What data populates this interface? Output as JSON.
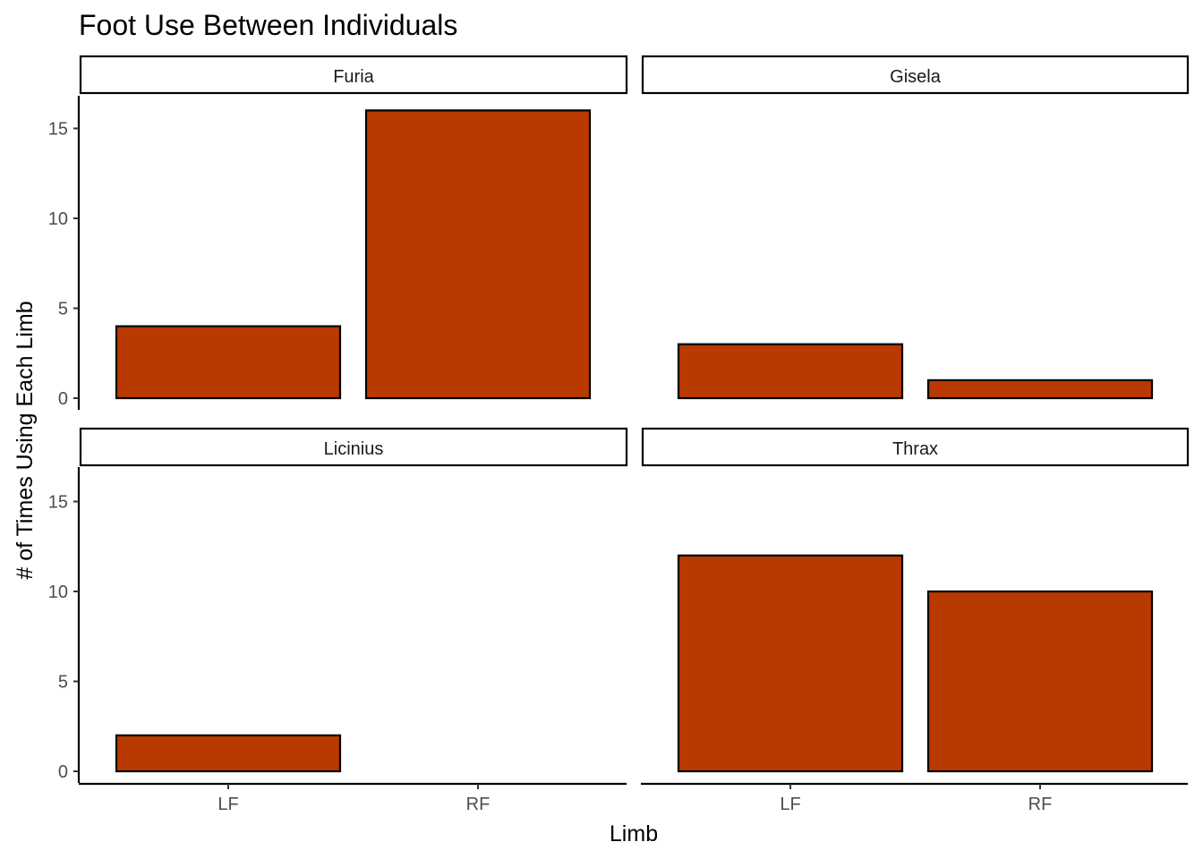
{
  "chart_data": {
    "type": "bar",
    "title": "Foot Use Between Individuals",
    "xlabel": "Limb",
    "ylabel": "# of Times Using Each Limb",
    "categories": [
      "LF",
      "RF"
    ],
    "ylim": [
      0,
      16
    ],
    "yticks": [
      0,
      5,
      10,
      15
    ],
    "grid": false,
    "bar_color": "#B83A00",
    "bar_outline": "#000000",
    "facets": [
      {
        "name": "Furia",
        "values": [
          4,
          16
        ]
      },
      {
        "name": "Gisela",
        "values": [
          3,
          1
        ]
      },
      {
        "name": "Licinius",
        "values": [
          2,
          0
        ]
      },
      {
        "name": "Thrax",
        "values": [
          12,
          10
        ]
      }
    ]
  }
}
